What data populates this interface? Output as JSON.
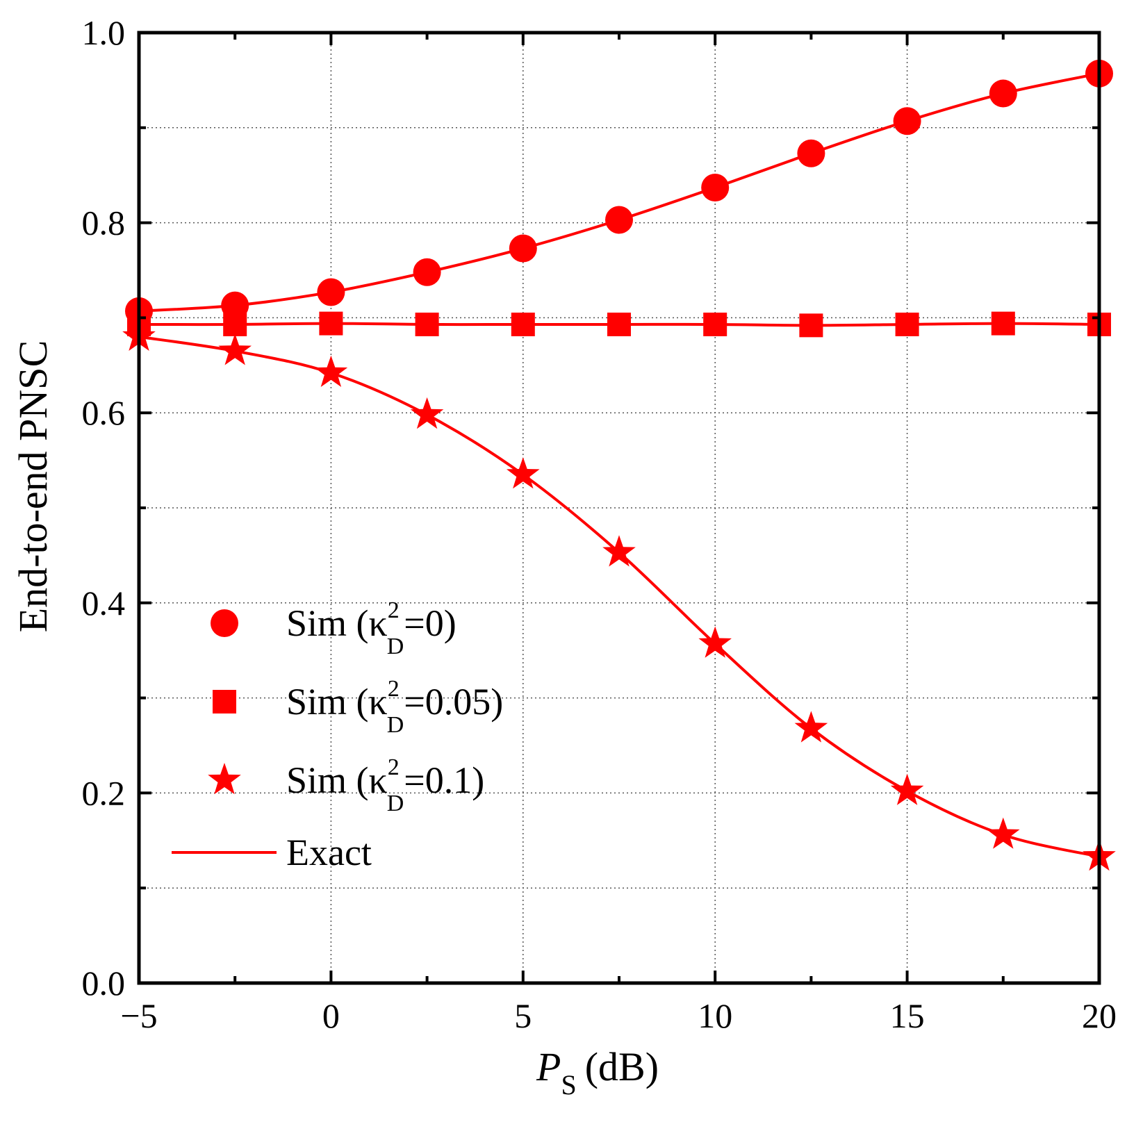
{
  "chart_data": {
    "type": "line",
    "title": "",
    "xlabel": {
      "main": "P",
      "sub": "S",
      "unit": "(dB)"
    },
    "ylabel": "End-to-end PNSC",
    "xlim": [
      -5,
      20
    ],
    "ylim": [
      0.0,
      1.0
    ],
    "xticks": [
      -5,
      0,
      5,
      10,
      15,
      20
    ],
    "xtick_labels": [
      "−5",
      "0",
      "5",
      "10",
      "15",
      "20"
    ],
    "yticks": [
      0.0,
      0.2,
      0.4,
      0.6,
      0.8,
      1.0
    ],
    "ytick_labels": [
      "0.0",
      "0.2",
      "0.4",
      "0.6",
      "0.8",
      "1.0"
    ],
    "grid": true,
    "legend_position": "lower-left",
    "color": "#ff0000",
    "x": [
      -5,
      -2.5,
      0,
      2.5,
      5,
      7.5,
      10,
      12.5,
      15,
      17.5,
      20
    ],
    "series": [
      {
        "name": "Sim (κ²D=0)",
        "label_pre": "Sim (κ",
        "label_sup": "2",
        "label_sub": "D",
        "label_post": "=0)",
        "marker": "circle",
        "values": [
          0.707,
          0.713,
          0.727,
          0.748,
          0.773,
          0.803,
          0.837,
          0.873,
          0.907,
          0.936,
          0.957
        ]
      },
      {
        "name": "Sim (κ²D=0.05)",
        "label_pre": "Sim (κ",
        "label_sup": "2",
        "label_sub": "D",
        "label_post": "=0.05)",
        "marker": "square",
        "values": [
          0.693,
          0.693,
          0.694,
          0.693,
          0.693,
          0.693,
          0.693,
          0.692,
          0.693,
          0.694,
          0.693
        ]
      },
      {
        "name": "Sim (κ²D=0.1)",
        "label_pre": "Sim (κ",
        "label_sup": "2",
        "label_sub": "D",
        "label_post": "=0.1)",
        "marker": "star",
        "values": [
          0.68,
          0.665,
          0.642,
          0.598,
          0.535,
          0.453,
          0.357,
          0.268,
          0.202,
          0.156,
          0.133
        ]
      }
    ],
    "exact_label": "Exact"
  }
}
